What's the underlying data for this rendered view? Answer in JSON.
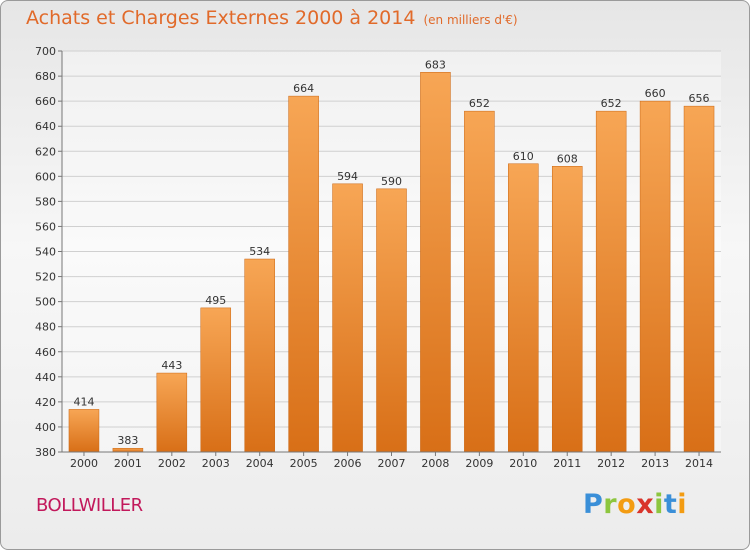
{
  "title": "Achats et Charges Externes 2000 à 2014",
  "subtitle": "(en milliers d'€)",
  "location": "BOLLWILLER",
  "logo": {
    "letters": [
      "P",
      "r",
      "o",
      "x",
      "i",
      "t",
      "i"
    ],
    "colors": [
      "#3a8fd8",
      "#8dc63f",
      "#f39c12",
      "#d9342b",
      "#8dc63f",
      "#3a8fd8",
      "#f39c12"
    ]
  },
  "colors": {
    "bar_top": "#f7a655",
    "bar_bottom": "#d86f17",
    "title": "#e16a2a",
    "location": "#c2185b"
  },
  "chart_data": {
    "type": "bar",
    "categories": [
      "2000",
      "2001",
      "2002",
      "2003",
      "2004",
      "2005",
      "2006",
      "2007",
      "2008",
      "2009",
      "2010",
      "2011",
      "2012",
      "2013",
      "2014"
    ],
    "values": [
      414,
      383,
      443,
      495,
      534,
      664,
      594,
      590,
      683,
      652,
      610,
      608,
      652,
      660,
      656
    ],
    "ylim": [
      380,
      700
    ],
    "yticks": [
      380,
      400,
      420,
      440,
      460,
      480,
      500,
      520,
      540,
      560,
      580,
      600,
      620,
      640,
      660,
      680,
      700
    ],
    "grid": true
  }
}
